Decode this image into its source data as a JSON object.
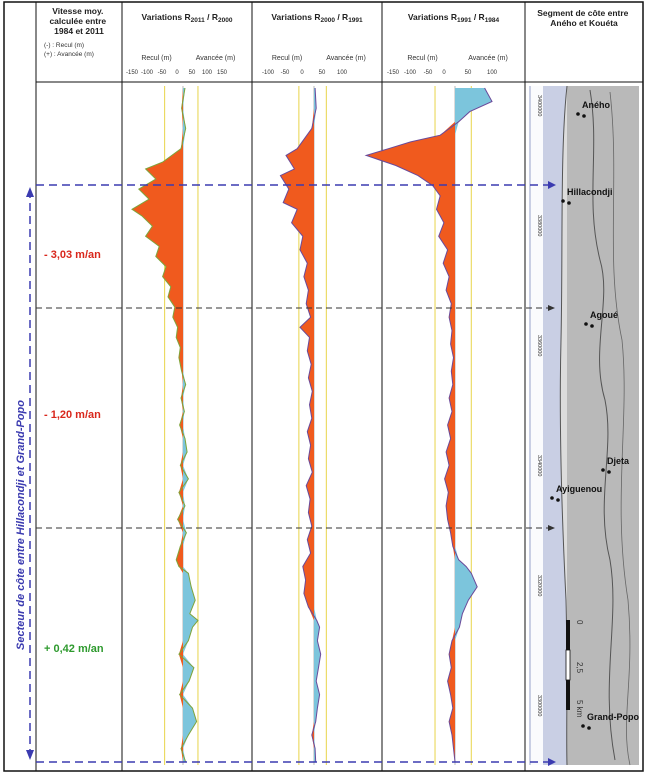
{
  "colors": {
    "recul": "#f05a1e",
    "avancee": "#7cc5dc",
    "profile_line": "#6a4a9a",
    "green_tint": "#7fa43a",
    "guide_line": "#e8d44a",
    "dashed": "#3b3bb0",
    "rate_red": "#d9271c",
    "rate_green": "#2e9a2e",
    "vertical_label": "#3b3bb0"
  },
  "columns": [
    {
      "title": "Vitesse moy. calculée entre 1984 et 2011",
      "legend": [
        "(-) : Recul (m)",
        "(+) : Avancée (m)"
      ]
    },
    {
      "title_main": "Variations R",
      "sub_a": "2011",
      "sub_b": "2000",
      "label_recul": "Recul (m)",
      "label_avancee": "Avancée (m)",
      "ticks": [
        "-150",
        "-100",
        "-50",
        "0",
        "50",
        "100",
        "150"
      ]
    },
    {
      "title_main": "Variations R",
      "sub_a": "2000",
      "sub_b": "1991",
      "label_recul": "Recul (m)",
      "label_avancee": "Avancée (m)",
      "ticks": [
        "-100",
        "-50",
        "0",
        "50",
        "100"
      ]
    },
    {
      "title_main": "Variations R",
      "sub_a": "1991",
      "sub_b": "1984",
      "label_recul": "Recul (m)",
      "label_avancee": "Avancée (m)",
      "ticks": [
        "-150",
        "-100",
        "-50",
        "0",
        "50",
        "100"
      ]
    },
    {
      "title": "Segment de côte entre Aného et Kouéta"
    }
  ],
  "rates": [
    {
      "label": "- 3,03 m/an",
      "tone": "red"
    },
    {
      "label": "- 1,20 m/an",
      "tone": "red"
    },
    {
      "label": "+ 0,42 m/an",
      "tone": "green"
    }
  ],
  "vertical_label": "Secteur de côte entre Hillacondji et Grand-Popo",
  "places": [
    {
      "name": "Aného"
    },
    {
      "name": "Hillacondji"
    },
    {
      "name": "Agoué"
    },
    {
      "name": "Djeta"
    },
    {
      "name": "Ayiguenou"
    },
    {
      "name": "Grand-Popo"
    }
  ],
  "scale": {
    "zero": "0",
    "mid": "2,5",
    "end": "5 km"
  },
  "map_ticks": [
    "3400000",
    "3380000",
    "3360000",
    "3340000",
    "3320000",
    "3300000"
  ],
  "profiles": {
    "c1": [
      [
        0,
        3
      ],
      [
        0.03,
        -2
      ],
      [
        0.06,
        4
      ],
      [
        0.09,
        -3
      ],
      [
        0.11,
        -30
      ],
      [
        0.12,
        -55
      ],
      [
        0.135,
        -40
      ],
      [
        0.15,
        -65
      ],
      [
        0.165,
        -50
      ],
      [
        0.18,
        -75
      ],
      [
        0.19,
        -60
      ],
      [
        0.205,
        -45
      ],
      [
        0.22,
        -55
      ],
      [
        0.235,
        -35
      ],
      [
        0.25,
        -40
      ],
      [
        0.265,
        -25
      ],
      [
        0.28,
        -30
      ],
      [
        0.295,
        -18
      ],
      [
        0.31,
        -22
      ],
      [
        0.325,
        -12
      ],
      [
        0.34,
        -15
      ],
      [
        0.355,
        -8
      ],
      [
        0.37,
        -10
      ],
      [
        0.385,
        -4
      ],
      [
        0.4,
        -6
      ],
      [
        0.42,
        -2
      ],
      [
        0.44,
        4
      ],
      [
        0.46,
        -3
      ],
      [
        0.48,
        2
      ],
      [
        0.5,
        -5
      ],
      [
        0.52,
        3
      ],
      [
        0.54,
        6
      ],
      [
        0.56,
        -4
      ],
      [
        0.58,
        8
      ],
      [
        0.6,
        -6
      ],
      [
        0.62,
        3
      ],
      [
        0.64,
        -8
      ],
      [
        0.66,
        5
      ],
      [
        0.68,
        -4
      ],
      [
        0.7,
        -10
      ],
      [
        0.71,
        -6
      ],
      [
        0.72,
        8
      ],
      [
        0.74,
        12
      ],
      [
        0.76,
        18
      ],
      [
        0.78,
        10
      ],
      [
        0.79,
        22
      ],
      [
        0.8,
        14
      ],
      [
        0.82,
        8
      ],
      [
        0.84,
        -6
      ],
      [
        0.86,
        16
      ],
      [
        0.88,
        9
      ],
      [
        0.9,
        -5
      ],
      [
        0.92,
        14
      ],
      [
        0.94,
        20
      ],
      [
        0.96,
        8
      ],
      [
        0.98,
        -3
      ],
      [
        1,
        4
      ]
    ],
    "c2": [
      [
        0,
        2
      ],
      [
        0.03,
        4
      ],
      [
        0.06,
        -4
      ],
      [
        0.09,
        -30
      ],
      [
        0.1,
        -50
      ],
      [
        0.12,
        -35
      ],
      [
        0.13,
        -60
      ],
      [
        0.15,
        -45
      ],
      [
        0.17,
        -55
      ],
      [
        0.18,
        -30
      ],
      [
        0.2,
        -40
      ],
      [
        0.22,
        -20
      ],
      [
        0.24,
        -25
      ],
      [
        0.26,
        -12
      ],
      [
        0.28,
        -18
      ],
      [
        0.3,
        -10
      ],
      [
        0.32,
        -14
      ],
      [
        0.34,
        -6
      ],
      [
        0.355,
        -25
      ],
      [
        0.37,
        -8
      ],
      [
        0.39,
        -12
      ],
      [
        0.41,
        -5
      ],
      [
        0.43,
        -10
      ],
      [
        0.45,
        -3
      ],
      [
        0.47,
        -8
      ],
      [
        0.49,
        -4
      ],
      [
        0.51,
        -12
      ],
      [
        0.53,
        -6
      ],
      [
        0.55,
        -10
      ],
      [
        0.57,
        -3
      ],
      [
        0.59,
        -14
      ],
      [
        0.61,
        -7
      ],
      [
        0.63,
        -10
      ],
      [
        0.65,
        -4
      ],
      [
        0.67,
        -12
      ],
      [
        0.69,
        -6
      ],
      [
        0.71,
        -20
      ],
      [
        0.73,
        -15
      ],
      [
        0.75,
        -18
      ],
      [
        0.77,
        -10
      ],
      [
        0.79,
        5
      ],
      [
        0.8,
        10
      ],
      [
        0.82,
        6
      ],
      [
        0.84,
        12
      ],
      [
        0.86,
        8
      ],
      [
        0.88,
        4
      ],
      [
        0.9,
        10
      ],
      [
        0.92,
        6
      ],
      [
        0.94,
        3
      ],
      [
        0.96,
        -4
      ],
      [
        0.98,
        2
      ],
      [
        1,
        3
      ]
    ],
    "c3": [
      [
        0,
        40
      ],
      [
        0.02,
        50
      ],
      [
        0.035,
        20
      ],
      [
        0.05,
        5
      ],
      [
        0.07,
        -20
      ],
      [
        0.08,
        -60
      ],
      [
        0.09,
        -90
      ],
      [
        0.1,
        -120
      ],
      [
        0.115,
        -80
      ],
      [
        0.13,
        -50
      ],
      [
        0.145,
        -30
      ],
      [
        0.16,
        -20
      ],
      [
        0.18,
        -25
      ],
      [
        0.2,
        -15
      ],
      [
        0.22,
        -22
      ],
      [
        0.24,
        -10
      ],
      [
        0.26,
        -16
      ],
      [
        0.28,
        -8
      ],
      [
        0.3,
        -12
      ],
      [
        0.32,
        -5
      ],
      [
        0.34,
        -8
      ],
      [
        0.36,
        -4
      ],
      [
        0.38,
        -6
      ],
      [
        0.4,
        -2
      ],
      [
        0.42,
        -5
      ],
      [
        0.44,
        -3
      ],
      [
        0.46,
        -8
      ],
      [
        0.48,
        -4
      ],
      [
        0.5,
        -10
      ],
      [
        0.52,
        -6
      ],
      [
        0.54,
        -12
      ],
      [
        0.56,
        -8
      ],
      [
        0.58,
        -14
      ],
      [
        0.6,
        -9
      ],
      [
        0.62,
        -12
      ],
      [
        0.64,
        -10
      ],
      [
        0.66,
        -6
      ],
      [
        0.68,
        -3
      ],
      [
        0.7,
        5
      ],
      [
        0.71,
        15
      ],
      [
        0.72,
        22
      ],
      [
        0.74,
        30
      ],
      [
        0.76,
        18
      ],
      [
        0.78,
        10
      ],
      [
        0.8,
        6
      ],
      [
        0.82,
        -4
      ],
      [
        0.84,
        -8
      ],
      [
        0.86,
        -5
      ],
      [
        0.88,
        -10
      ],
      [
        0.9,
        -6
      ],
      [
        0.92,
        -3
      ],
      [
        0.94,
        -8
      ],
      [
        0.96,
        -4
      ],
      [
        0.98,
        -2
      ],
      [
        1,
        0
      ]
    ]
  }
}
